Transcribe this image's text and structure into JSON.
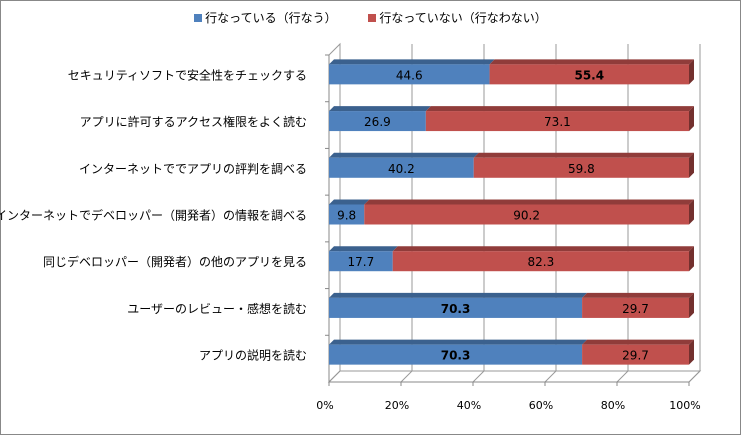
{
  "chart_data": {
    "type": "bar",
    "orientation": "horizontal",
    "stacked": "percent",
    "style": "3d",
    "categories": [
      "セキュリティソフトで安全性をチェックする",
      "アプリに許可するアクセス権限をよく読む",
      "インターネットででアプリの評判を調べる",
      "インターネットでデベロッパー（開発者）の情報を調べる",
      "同じデベロッパー（開発者）の他のアプリを見る",
      "ユーザーのレビュー・感想を読む",
      "アプリの説明を読む"
    ],
    "series": [
      {
        "name": "行なっている（行なう）",
        "color": "#4f81bd",
        "values": [
          44.6,
          26.9,
          40.2,
          9.8,
          17.7,
          70.3,
          70.3
        ],
        "bold": [
          false,
          false,
          false,
          false,
          false,
          true,
          true
        ]
      },
      {
        "name": "行なっていない（行なわない）",
        "color": "#c0504d",
        "values": [
          55.4,
          73.1,
          59.8,
          90.2,
          82.3,
          29.7,
          29.7
        ],
        "bold": [
          true,
          false,
          false,
          false,
          false,
          false,
          false
        ]
      }
    ],
    "xlim": [
      0,
      100
    ],
    "xticks": [
      "0%",
      "20%",
      "40%",
      "60%",
      "80%",
      "100%"
    ],
    "grid": true,
    "legend": "top",
    "title": "",
    "xlabel": "",
    "ylabel": ""
  }
}
